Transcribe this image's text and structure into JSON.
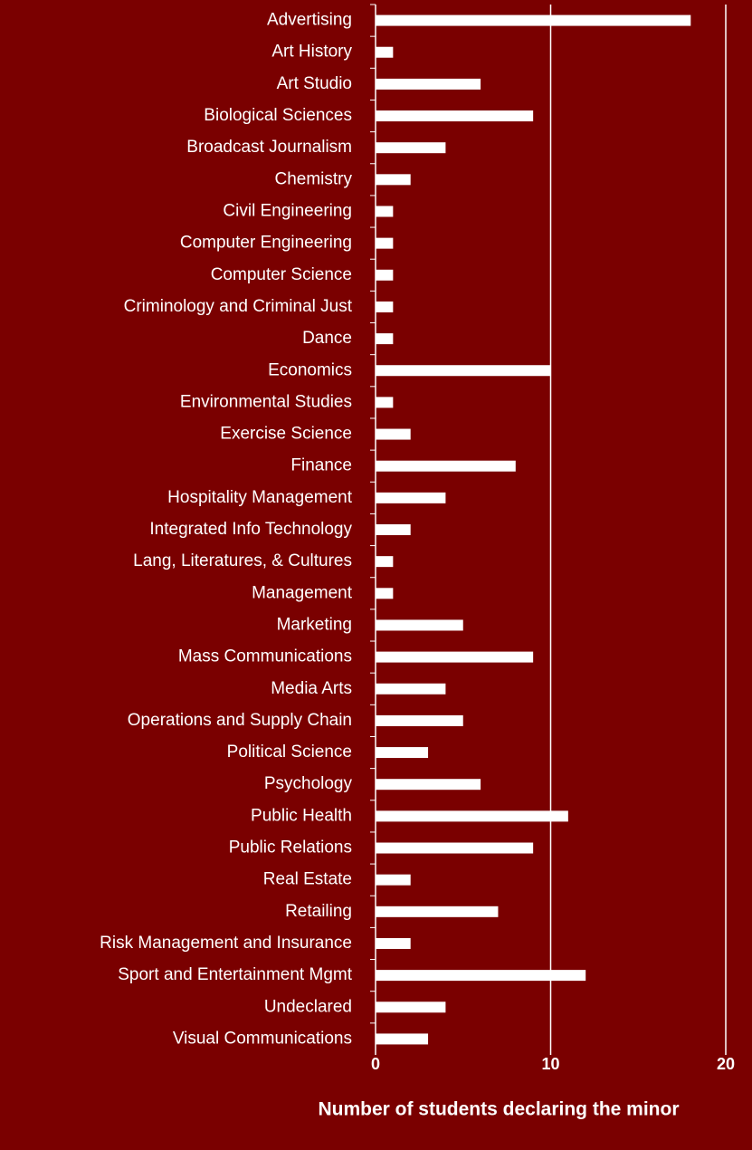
{
  "chart_data": {
    "type": "bar",
    "orientation": "horizontal",
    "x_label": "Number of students declaring the minor",
    "categories": [
      "Advertising",
      "Art History",
      "Art Studio",
      "Biological Sciences",
      "Broadcast Journalism",
      "Chemistry",
      "Civil Engineering",
      "Computer Engineering",
      "Computer Science",
      "Criminology and Criminal Just",
      "Dance",
      "Economics",
      "Environmental Studies",
      "Exercise Science",
      "Finance",
      "Hospitality Management",
      "Integrated Info Technology",
      "Lang, Literatures, & Cultures",
      "Management",
      "Marketing",
      "Mass Communications",
      "Media Arts",
      "Operations and Supply Chain",
      "Political Science",
      "Psychology",
      "Public Health",
      "Public Relations",
      "Real Estate",
      "Retailing",
      "Risk Management and Insurance",
      "Sport and Entertainment Mgmt",
      "Undeclared",
      "Visual Communications"
    ],
    "values": [
      18,
      1,
      6,
      9,
      4,
      2,
      1,
      1,
      1,
      1,
      1,
      10,
      1,
      2,
      8,
      4,
      2,
      1,
      1,
      5,
      9,
      4,
      5,
      3,
      6,
      11,
      9,
      2,
      7,
      2,
      12,
      4,
      3
    ],
    "color": "#ffffff",
    "xlim": [
      0,
      20
    ],
    "xticks": [
      0,
      10,
      20
    ],
    "grid": true
  }
}
